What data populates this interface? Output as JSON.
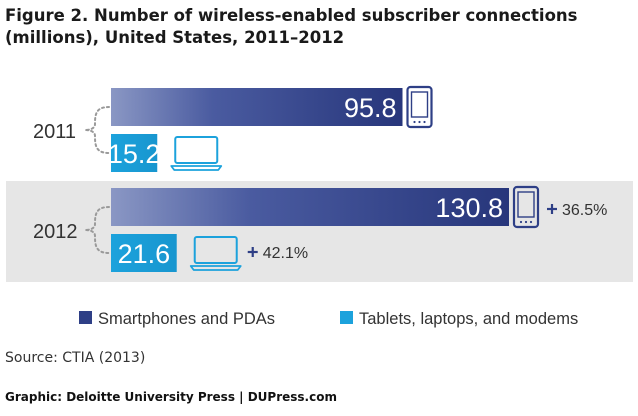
{
  "chart_data": {
    "type": "bar",
    "orientation": "horizontal",
    "title": "Figure 2. Number of wireless-enabled subscriber connections (millions), United States, 2011–2012",
    "categories": [
      "2011",
      "2012"
    ],
    "series": [
      {
        "name": "Smartphones and PDAs",
        "values": [
          95.8,
          130.8
        ],
        "color": "#2e3f86",
        "icon": "smartphone-icon"
      },
      {
        "name": "Tablets, laptops, and modems",
        "values": [
          15.2,
          21.6
        ],
        "color": "#1ca2dc",
        "icon": "laptop-icon"
      }
    ],
    "annotations": [
      {
        "category": "2012",
        "series": "Smartphones and PDAs",
        "text": "36.5%"
      },
      {
        "category": "2012",
        "series": "Tablets, laptops, and modems",
        "text": "42.1%"
      }
    ],
    "legend_position": "bottom",
    "highlight_category": "2012",
    "highlight_color": "#e6e6e6"
  },
  "footer": {
    "source": "Source: CTIA (2013)",
    "credit": "Graphic: Deloitte University Press  |  DUPress.com"
  }
}
